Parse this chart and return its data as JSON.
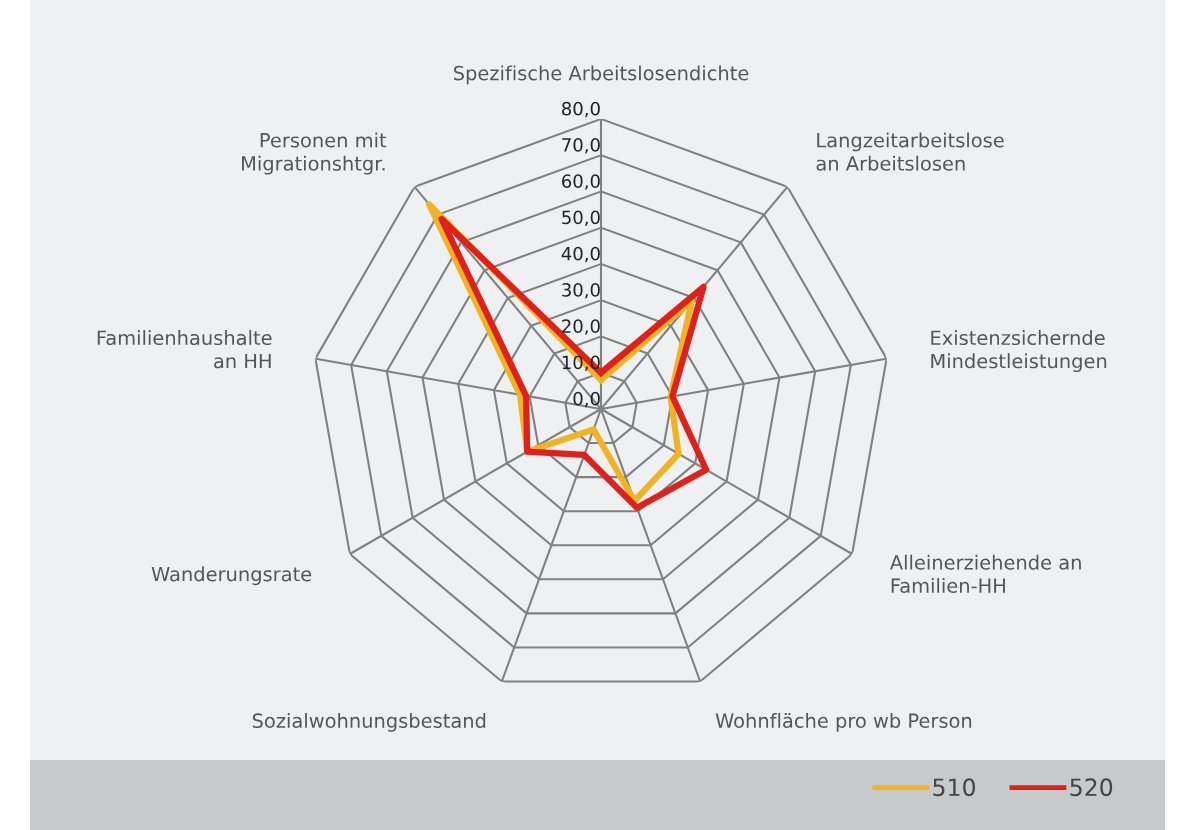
{
  "chart_data": {
    "type": "radar",
    "categories": [
      "Spezifische Arbeitslosendichte",
      "Langzeitarbeitslose\nan Arbeitslosen",
      "Existenzsichernde\nMindestleistungen",
      "Alleinerziehende an\nFamilien-HH",
      "Wohnfläche pro wb Person",
      "Sozialwohnungsbestand",
      "Wanderungsrate",
      "Familienhaushalte\nan HH",
      "Personen mit\nMigrationshtgr."
    ],
    "series": [
      {
        "name": "510",
        "color": "#f0b323",
        "values": [
          8,
          39,
          19.5,
          24.7,
          27,
          6,
          23.5,
          22.7,
          73.8
        ]
      },
      {
        "name": "520",
        "color": "#e0211b",
        "values": [
          10,
          44,
          20,
          33.5,
          29,
          13.5,
          23.5,
          21,
          68.4
        ]
      }
    ],
    "ylim": [
      0,
      80
    ],
    "yticks": [
      {
        "value": 0,
        "label": "0,0"
      },
      {
        "value": 10,
        "label": "10,0"
      },
      {
        "value": 20,
        "label": "20,0"
      },
      {
        "value": 30,
        "label": "30,0"
      },
      {
        "value": 40,
        "label": "40,0"
      },
      {
        "value": 50,
        "label": "50,0"
      },
      {
        "value": 60,
        "label": "60,0"
      },
      {
        "value": 70,
        "label": "70,0"
      },
      {
        "value": 80,
        "label": "80,0"
      }
    ],
    "grid": true,
    "legend": "bottom right",
    "line_style": "solid",
    "marker": "none"
  }
}
